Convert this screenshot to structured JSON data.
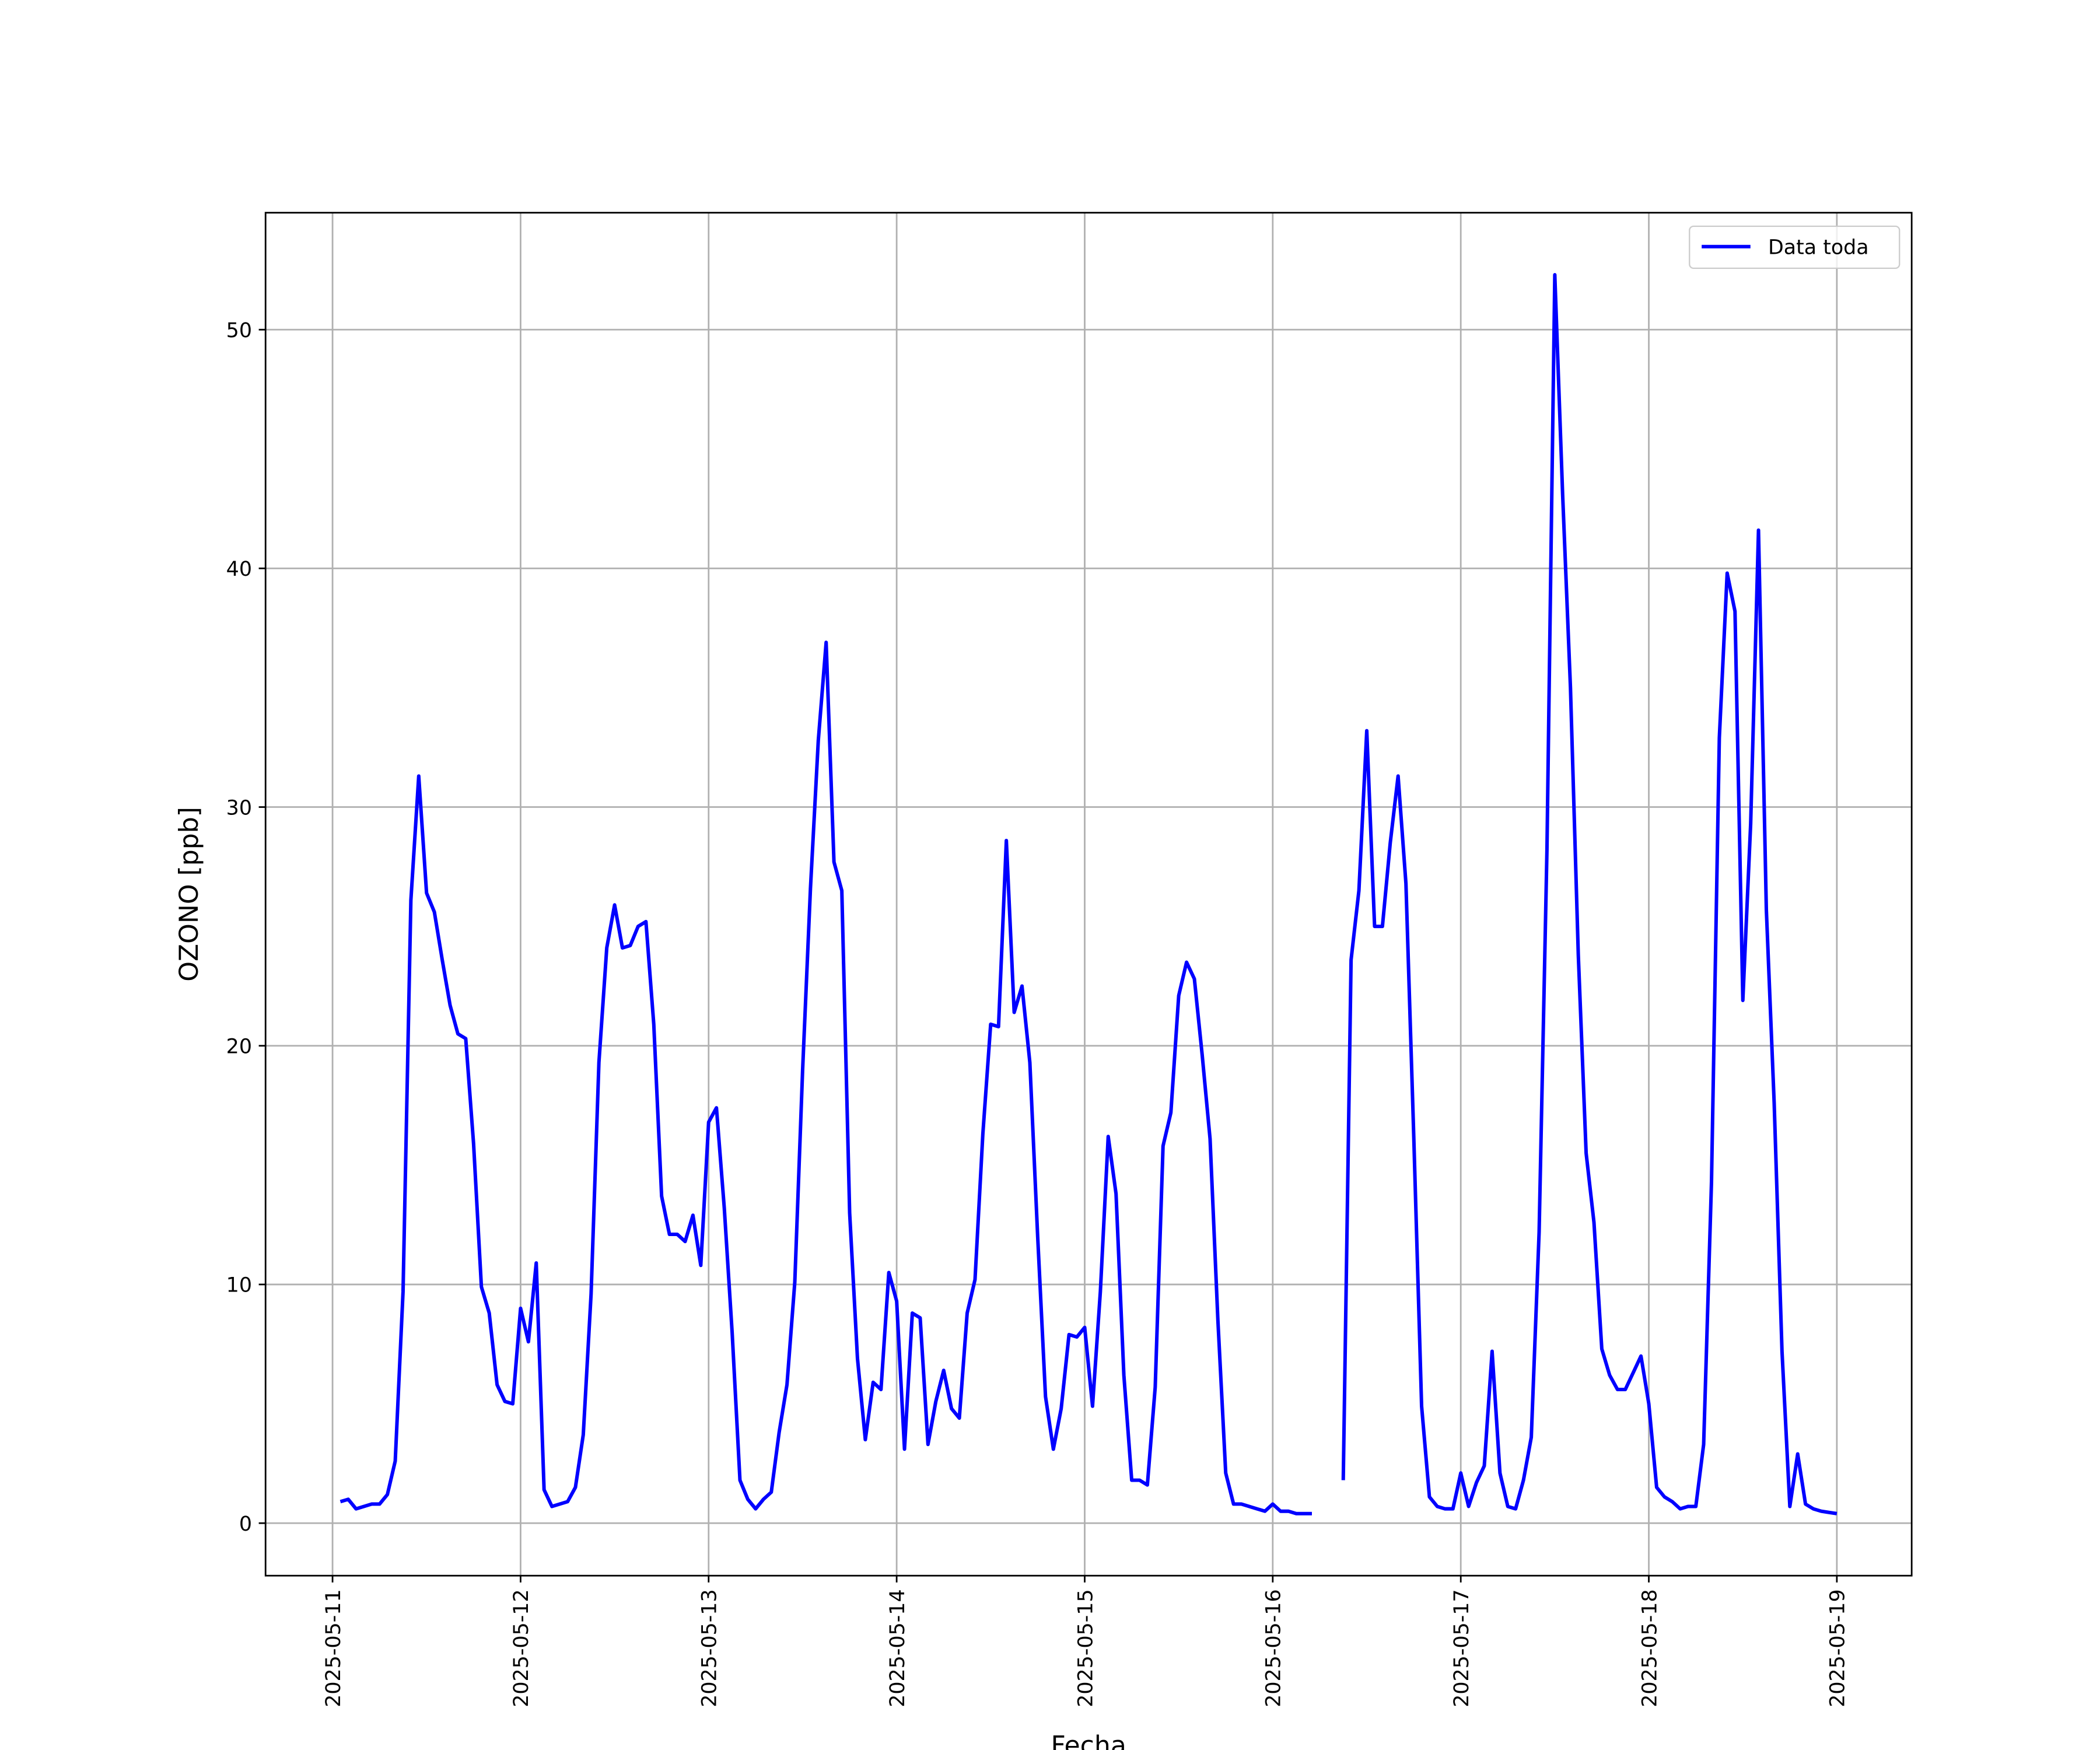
{
  "chart_data": {
    "type": "line",
    "xlabel": "Fecha",
    "ylabel": "OZONO [ppb]",
    "x": [
      "2025-05-11 01:00",
      "2025-05-11 02:00",
      "2025-05-11 03:00",
      "2025-05-11 04:00",
      "2025-05-11 05:00",
      "2025-05-11 06:00",
      "2025-05-11 07:00",
      "2025-05-11 08:00",
      "2025-05-11 09:00",
      "2025-05-11 10:00",
      "2025-05-11 11:00",
      "2025-05-11 12:00",
      "2025-05-11 13:00",
      "2025-05-11 14:00",
      "2025-05-11 15:00",
      "2025-05-11 16:00",
      "2025-05-11 17:00",
      "2025-05-11 18:00",
      "2025-05-11 19:00",
      "2025-05-11 20:00",
      "2025-05-11 21:00",
      "2025-05-11 22:00",
      "2025-05-11 23:00",
      "2025-05-12 00:00",
      "2025-05-12 01:00",
      "2025-05-12 02:00",
      "2025-05-12 03:00",
      "2025-05-12 04:00",
      "2025-05-12 05:00",
      "2025-05-12 06:00",
      "2025-05-12 07:00",
      "2025-05-12 08:00",
      "2025-05-12 09:00",
      "2025-05-12 10:00",
      "2025-05-12 11:00",
      "2025-05-12 12:00",
      "2025-05-12 13:00",
      "2025-05-12 14:00",
      "2025-05-12 15:00",
      "2025-05-12 16:00",
      "2025-05-12 17:00",
      "2025-05-12 18:00",
      "2025-05-12 19:00",
      "2025-05-12 20:00",
      "2025-05-12 21:00",
      "2025-05-12 22:00",
      "2025-05-12 23:00",
      "2025-05-13 00:00",
      "2025-05-13 01:00",
      "2025-05-13 02:00",
      "2025-05-13 03:00",
      "2025-05-13 04:00",
      "2025-05-13 05:00",
      "2025-05-13 06:00",
      "2025-05-13 07:00",
      "2025-05-13 08:00",
      "2025-05-13 09:00",
      "2025-05-13 10:00",
      "2025-05-13 11:00",
      "2025-05-13 12:00",
      "2025-05-13 13:00",
      "2025-05-13 14:00",
      "2025-05-13 15:00",
      "2025-05-13 16:00",
      "2025-05-13 17:00",
      "2025-05-13 18:00",
      "2025-05-13 19:00",
      "2025-05-13 20:00",
      "2025-05-13 21:00",
      "2025-05-13 22:00",
      "2025-05-13 23:00",
      "2025-05-14 00:00",
      "2025-05-14 01:00",
      "2025-05-14 02:00",
      "2025-05-14 03:00",
      "2025-05-14 04:00",
      "2025-05-14 05:00",
      "2025-05-14 06:00",
      "2025-05-14 07:00",
      "2025-05-14 08:00",
      "2025-05-14 09:00",
      "2025-05-14 10:00",
      "2025-05-14 11:00",
      "2025-05-14 12:00",
      "2025-05-14 13:00",
      "2025-05-14 14:00",
      "2025-05-14 15:00",
      "2025-05-14 16:00",
      "2025-05-14 17:00",
      "2025-05-14 18:00",
      "2025-05-14 19:00",
      "2025-05-14 20:00",
      "2025-05-14 21:00",
      "2025-05-14 22:00",
      "2025-05-14 23:00",
      "2025-05-15 00:00",
      "2025-05-15 01:00",
      "2025-05-15 02:00",
      "2025-05-15 03:00",
      "2025-05-15 04:00",
      "2025-05-15 05:00",
      "2025-05-15 06:00",
      "2025-05-15 07:00",
      "2025-05-15 08:00",
      "2025-05-15 09:00",
      "2025-05-15 10:00",
      "2025-05-15 11:00",
      "2025-05-15 12:00",
      "2025-05-15 13:00",
      "2025-05-15 14:00",
      "2025-05-15 15:00",
      "2025-05-15 16:00",
      "2025-05-15 17:00",
      "2025-05-15 18:00",
      "2025-05-15 19:00",
      "2025-05-15 20:00",
      "2025-05-15 21:00",
      "2025-05-15 22:00",
      "2025-05-15 23:00",
      "2025-05-16 00:00",
      "2025-05-16 01:00",
      "2025-05-16 02:00",
      "2025-05-16 03:00",
      "2025-05-16 04:00",
      "2025-05-16 05:00",
      "2025-05-16 06:00",
      "2025-05-16 07:00",
      "2025-05-16 08:00",
      "2025-05-16 09:00",
      "2025-05-16 10:00",
      "2025-05-16 11:00",
      "2025-05-16 12:00",
      "2025-05-16 13:00",
      "2025-05-16 14:00",
      "2025-05-16 15:00",
      "2025-05-16 16:00",
      "2025-05-16 17:00",
      "2025-05-16 18:00",
      "2025-05-16 19:00",
      "2025-05-16 20:00",
      "2025-05-16 21:00",
      "2025-05-16 22:00",
      "2025-05-16 23:00",
      "2025-05-17 00:00",
      "2025-05-17 01:00",
      "2025-05-17 02:00",
      "2025-05-17 03:00",
      "2025-05-17 04:00",
      "2025-05-17 05:00",
      "2025-05-17 06:00",
      "2025-05-17 07:00",
      "2025-05-17 08:00",
      "2025-05-17 09:00",
      "2025-05-17 10:00",
      "2025-05-17 11:00",
      "2025-05-17 12:00",
      "2025-05-17 13:00",
      "2025-05-17 14:00",
      "2025-05-17 15:00",
      "2025-05-17 16:00",
      "2025-05-17 17:00",
      "2025-05-17 18:00",
      "2025-05-17 19:00",
      "2025-05-17 20:00",
      "2025-05-17 21:00",
      "2025-05-17 22:00",
      "2025-05-17 23:00",
      "2025-05-18 00:00",
      "2025-05-18 01:00",
      "2025-05-18 02:00",
      "2025-05-18 03:00",
      "2025-05-18 04:00",
      "2025-05-18 05:00",
      "2025-05-18 06:00",
      "2025-05-18 07:00",
      "2025-05-18 08:00",
      "2025-05-18 09:00",
      "2025-05-18 10:00",
      "2025-05-18 11:00",
      "2025-05-18 12:00",
      "2025-05-18 13:00",
      "2025-05-18 14:00",
      "2025-05-18 15:00",
      "2025-05-18 16:00",
      "2025-05-18 17:00",
      "2025-05-18 18:00",
      "2025-05-18 19:00",
      "2025-05-18 20:00",
      "2025-05-18 21:00",
      "2025-05-18 22:00",
      "2025-05-18 23:00",
      "2025-05-19 00:00"
    ],
    "series": [
      {
        "name": "Data toda",
        "color": "blue",
        "values": [
          0.9,
          1.0,
          0.6,
          0.7,
          0.8,
          0.8,
          1.2,
          2.6,
          9.7,
          26.1,
          31.3,
          26.4,
          25.6,
          23.6,
          21.7,
          20.5,
          20.3,
          15.9,
          9.9,
          8.8,
          5.8,
          5.1,
          5.0,
          9.0,
          7.6,
          10.9,
          1.4,
          0.7,
          0.8,
          0.9,
          1.5,
          3.7,
          9.6,
          19.3,
          24.1,
          25.9,
          24.1,
          24.2,
          25.0,
          25.2,
          20.9,
          13.7,
          12.1,
          12.1,
          11.8,
          12.9,
          10.8,
          16.8,
          17.4,
          13.2,
          8.0,
          1.8,
          1.0,
          0.6,
          1.0,
          1.3,
          3.8,
          5.8,
          10.1,
          19.0,
          26.6,
          32.8,
          36.9,
          27.7,
          26.5,
          13.0,
          6.9,
          3.5,
          5.9,
          5.6,
          10.5,
          9.3,
          3.1,
          8.8,
          8.6,
          3.3,
          5.1,
          6.4,
          4.8,
          4.4,
          8.8,
          10.2,
          16.3,
          20.9,
          20.8,
          28.6,
          21.4,
          22.5,
          19.3,
          12.0,
          5.3,
          3.1,
          4.8,
          7.9,
          7.8,
          8.2,
          4.9,
          9.7,
          16.2,
          13.8,
          6.2,
          1.8,
          1.8,
          1.6,
          5.7,
          15.8,
          17.2,
          22.1,
          23.5,
          22.8,
          19.6,
          16.1,
          8.5,
          2.1,
          0.8,
          0.8,
          0.7,
          0.6,
          0.5,
          0.8,
          0.5,
          0.5,
          0.4,
          0.4,
          0.4,
          null,
          null,
          null,
          1.8,
          23.6,
          26.5,
          33.2,
          25.0,
          25.0,
          28.5,
          31.3,
          26.8,
          16.2,
          4.9,
          1.1,
          0.7,
          0.6,
          0.6,
          2.1,
          0.7,
          1.7,
          2.4,
          7.2,
          2.1,
          0.7,
          0.6,
          1.8,
          3.6,
          12.2,
          28.2,
          52.3,
          43.1,
          35.0,
          23.8,
          15.5,
          12.6,
          7.3,
          6.2,
          5.6,
          5.6,
          6.3,
          7.0,
          5.0,
          1.5,
          1.1,
          0.9,
          0.6,
          0.7,
          0.7,
          3.3,
          14.3,
          32.9,
          39.8,
          38.2,
          21.9,
          29.3,
          41.6,
          25.7,
          17.6,
          7.2,
          0.7,
          2.9,
          0.8,
          0.6,
          0.5,
          0.45,
          0.4
        ]
      }
    ],
    "xlim": [
      "2025-05-10 15:27",
      "2025-05-19 09:33"
    ],
    "xticks": [
      "2025-05-11",
      "2025-05-12",
      "2025-05-13",
      "2025-05-14",
      "2025-05-15",
      "2025-05-16",
      "2025-05-17",
      "2025-05-18",
      "2025-05-19"
    ],
    "ylim": [
      -2.2,
      54.9
    ],
    "yticks": [
      0,
      10,
      20,
      30,
      40,
      50
    ],
    "grid": true,
    "legend": "upper right"
  }
}
